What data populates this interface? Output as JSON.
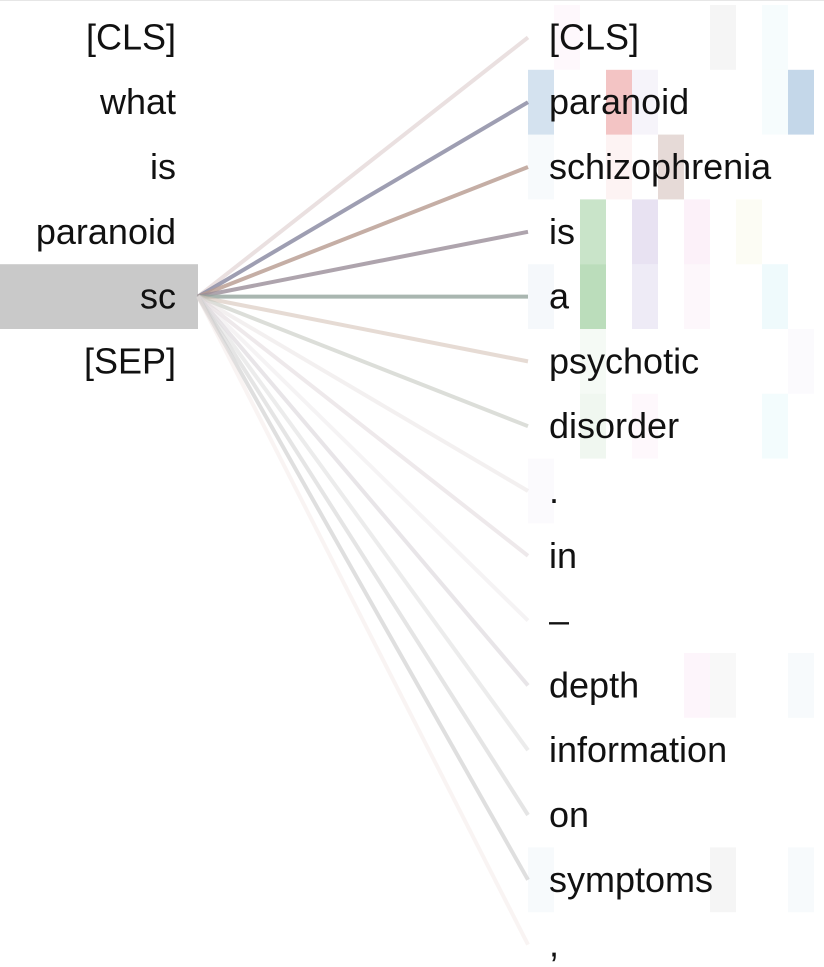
{
  "left_tokens": [
    "[CLS]",
    "what",
    "is",
    "paranoid",
    "sc",
    "[SEP]"
  ],
  "right_tokens": [
    "[CLS]",
    "paranoid",
    "schizophrenia",
    "is",
    "a",
    "psychotic",
    "disorder",
    ".",
    "in",
    "–",
    "depth",
    "information",
    "on",
    "symptoms",
    ","
  ],
  "selected_left_index": 4,
  "selected_highlight_color": "#c9c9c9",
  "edges": [
    {
      "to": 0,
      "color": "#d8c6c6",
      "opacity": 0.55,
      "width": 4
    },
    {
      "to": 1,
      "color": "#8d8da4",
      "opacity": 0.85,
      "width": 4
    },
    {
      "to": 2,
      "color": "#b79a8e",
      "opacity": 0.8,
      "width": 4
    },
    {
      "to": 3,
      "color": "#9a8d99",
      "opacity": 0.8,
      "width": 4
    },
    {
      "to": 4,
      "color": "#94a49c",
      "opacity": 0.8,
      "width": 4
    },
    {
      "to": 5,
      "color": "#d6c3b8",
      "opacity": 0.6,
      "width": 4
    },
    {
      "to": 6,
      "color": "#c4c8c0",
      "opacity": 0.6,
      "width": 4
    },
    {
      "to": 7,
      "color": "#e4dede",
      "opacity": 0.45,
      "width": 4
    },
    {
      "to": 8,
      "color": "#d9cfd3",
      "opacity": 0.45,
      "width": 4
    },
    {
      "to": 9,
      "color": "#e7e1e3",
      "opacity": 0.4,
      "width": 4
    },
    {
      "to": 10,
      "color": "#d5cfd5",
      "opacity": 0.55,
      "width": 4
    },
    {
      "to": 11,
      "color": "#dcdcdc",
      "opacity": 0.55,
      "width": 4
    },
    {
      "to": 12,
      "color": "#cfcfcf",
      "opacity": 0.55,
      "width": 4
    },
    {
      "to": 13,
      "color": "#c9c9c9",
      "opacity": 0.6,
      "width": 4
    },
    {
      "to": 14,
      "color": "#efe3e1",
      "opacity": 0.4,
      "width": 4
    }
  ],
  "heat_colors": [
    "#3a79b6",
    "#3c9f3c",
    "#d73a3a",
    "#8a6fbf",
    "#8c564b",
    "#e377c2",
    "#7f7f7f",
    "#bcbd22",
    "#17becf"
  ],
  "heat_cells": [
    {
      "r": 0,
      "c": 1,
      "k": 5,
      "o": 0.05
    },
    {
      "r": 0,
      "c": 7,
      "k": 6,
      "o": 0.08
    },
    {
      "r": 0,
      "c": 9,
      "k": 8,
      "o": 0.04
    },
    {
      "r": 1,
      "c": 0,
      "k": 0,
      "o": 0.22
    },
    {
      "r": 1,
      "c": 3,
      "k": 2,
      "o": 0.3
    },
    {
      "r": 1,
      "c": 4,
      "k": 3,
      "o": 0.08
    },
    {
      "r": 1,
      "c": 10,
      "k": 0,
      "o": 0.3
    },
    {
      "r": 1,
      "c": 9,
      "k": 8,
      "o": 0.04
    },
    {
      "r": 2,
      "c": 5,
      "k": 4,
      "o": 0.22
    },
    {
      "r": 2,
      "c": 3,
      "k": 2,
      "o": 0.06
    },
    {
      "r": 2,
      "c": 0,
      "k": 0,
      "o": 0.04
    },
    {
      "r": 3,
      "c": 2,
      "k": 1,
      "o": 0.28
    },
    {
      "r": 3,
      "c": 4,
      "k": 3,
      "o": 0.2
    },
    {
      "r": 3,
      "c": 6,
      "k": 5,
      "o": 0.1
    },
    {
      "r": 3,
      "c": 8,
      "k": 7,
      "o": 0.05
    },
    {
      "r": 4,
      "c": 2,
      "k": 1,
      "o": 0.35
    },
    {
      "r": 4,
      "c": 4,
      "k": 3,
      "o": 0.14
    },
    {
      "r": 4,
      "c": 6,
      "k": 5,
      "o": 0.06
    },
    {
      "r": 4,
      "c": 9,
      "k": 8,
      "o": 0.07
    },
    {
      "r": 4,
      "c": 0,
      "k": 0,
      "o": 0.05
    },
    {
      "r": 5,
      "c": 2,
      "k": 1,
      "o": 0.05
    },
    {
      "r": 5,
      "c": 10,
      "k": 3,
      "o": 0.03
    },
    {
      "r": 6,
      "c": 2,
      "k": 1,
      "o": 0.08
    },
    {
      "r": 6,
      "c": 4,
      "k": 5,
      "o": 0.05
    },
    {
      "r": 6,
      "c": 9,
      "k": 8,
      "o": 0.05
    },
    {
      "r": 7,
      "c": 0,
      "k": 3,
      "o": 0.03
    },
    {
      "r": 10,
      "c": 6,
      "k": 5,
      "o": 0.07
    },
    {
      "r": 10,
      "c": 7,
      "k": 6,
      "o": 0.05
    },
    {
      "r": 10,
      "c": 10,
      "k": 0,
      "o": 0.04
    },
    {
      "r": 13,
      "c": 0,
      "k": 0,
      "o": 0.04
    },
    {
      "r": 13,
      "c": 7,
      "k": 6,
      "o": 0.08
    },
    {
      "r": 13,
      "c": 10,
      "k": 0,
      "o": 0.04
    }
  ]
}
